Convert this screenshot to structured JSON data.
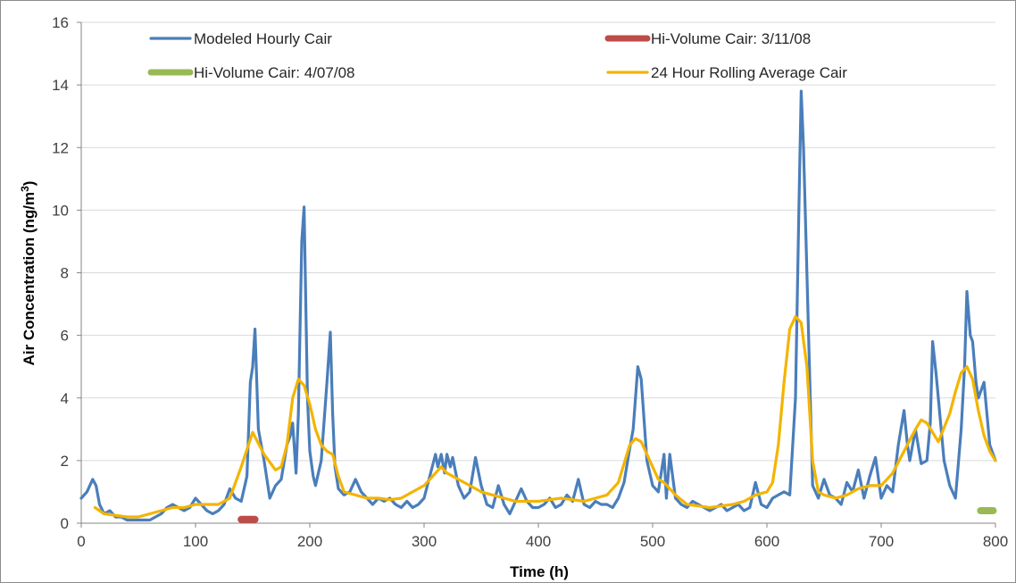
{
  "chart_data": {
    "type": "line",
    "xlabel": "Time (h)",
    "ylabel": "Air Concentration (ng/m",
    "ylabel_superscript": "3",
    "ylabel_close": ")",
    "xlim": [
      0,
      800
    ],
    "ylim": [
      0,
      16
    ],
    "xticks": [
      0,
      100,
      200,
      300,
      400,
      500,
      600,
      700,
      800
    ],
    "yticks": [
      0,
      2,
      4,
      6,
      8,
      10,
      12,
      14,
      16
    ],
    "grid": "horizontal",
    "legend_placement": "top",
    "series": [
      {
        "name": "Modeled Hourly Cair",
        "style": "line",
        "color": "#4a7ebb",
        "x": [
          0,
          5,
          10,
          13,
          16,
          20,
          25,
          30,
          35,
          40,
          50,
          60,
          65,
          70,
          75,
          80,
          85,
          90,
          95,
          100,
          105,
          110,
          115,
          120,
          125,
          130,
          135,
          140,
          145,
          148,
          150,
          152,
          155,
          160,
          165,
          170,
          175,
          180,
          183,
          185,
          188,
          190,
          193,
          195,
          198,
          200,
          203,
          205,
          210,
          215,
          218,
          220,
          222,
          225,
          230,
          235,
          240,
          245,
          250,
          255,
          260,
          265,
          270,
          275,
          280,
          285,
          290,
          295,
          300,
          305,
          310,
          312,
          315,
          318,
          320,
          323,
          325,
          330,
          335,
          340,
          345,
          350,
          355,
          360,
          365,
          370,
          375,
          380,
          385,
          390,
          395,
          400,
          405,
          410,
          415,
          420,
          425,
          430,
          435,
          440,
          445,
          450,
          455,
          460,
          465,
          470,
          475,
          480,
          483,
          485,
          487,
          490,
          495,
          500,
          505,
          510,
          512,
          515,
          520,
          525,
          530,
          535,
          540,
          545,
          550,
          555,
          560,
          565,
          570,
          575,
          580,
          585,
          590,
          595,
          600,
          605,
          610,
          615,
          620,
          625,
          628,
          630,
          632,
          635,
          640,
          645,
          650,
          655,
          660,
          665,
          670,
          675,
          680,
          685,
          690,
          695,
          700,
          705,
          710,
          715,
          720,
          723,
          725,
          730,
          735,
          740,
          743,
          745,
          748,
          750,
          755,
          760,
          765,
          770,
          773,
          775,
          778,
          780,
          783,
          785,
          790,
          795,
          800
        ],
        "y": [
          0.8,
          1.0,
          1.4,
          1.2,
          0.6,
          0.3,
          0.4,
          0.2,
          0.2,
          0.1,
          0.1,
          0.1,
          0.2,
          0.3,
          0.5,
          0.6,
          0.5,
          0.4,
          0.5,
          0.8,
          0.6,
          0.4,
          0.3,
          0.4,
          0.6,
          1.1,
          0.8,
          0.7,
          1.5,
          4.5,
          5.0,
          6.2,
          3.0,
          2.0,
          0.8,
          1.2,
          1.4,
          2.5,
          2.8,
          3.2,
          1.6,
          3.5,
          9.0,
          10.1,
          4.0,
          2.3,
          1.5,
          1.2,
          2.0,
          4.5,
          6.1,
          3.5,
          1.8,
          1.1,
          0.9,
          1.0,
          1.4,
          1.0,
          0.8,
          0.6,
          0.8,
          0.7,
          0.8,
          0.6,
          0.5,
          0.7,
          0.5,
          0.6,
          0.8,
          1.5,
          2.2,
          1.8,
          2.2,
          1.6,
          2.2,
          1.8,
          2.1,
          1.2,
          0.8,
          1.0,
          2.1,
          1.2,
          0.6,
          0.5,
          1.2,
          0.6,
          0.3,
          0.7,
          1.1,
          0.7,
          0.5,
          0.5,
          0.6,
          0.8,
          0.5,
          0.6,
          0.9,
          0.7,
          1.4,
          0.6,
          0.5,
          0.7,
          0.6,
          0.6,
          0.5,
          0.8,
          1.3,
          2.4,
          3.0,
          4.0,
          5.0,
          4.6,
          2.0,
          1.2,
          1.0,
          2.2,
          0.8,
          2.2,
          0.8,
          0.6,
          0.5,
          0.7,
          0.6,
          0.5,
          0.4,
          0.5,
          0.6,
          0.4,
          0.5,
          0.6,
          0.4,
          0.5,
          1.3,
          0.6,
          0.5,
          0.8,
          0.9,
          1.0,
          0.9,
          4.0,
          10.0,
          13.8,
          12.0,
          8.0,
          1.2,
          0.8,
          1.4,
          0.9,
          0.8,
          0.6,
          1.3,
          1.0,
          1.7,
          0.8,
          1.5,
          2.1,
          0.8,
          1.2,
          1.0,
          2.5,
          3.6,
          2.5,
          2.0,
          3.0,
          1.9,
          2.0,
          3.2,
          5.8,
          4.8,
          4.0,
          2.0,
          1.2,
          0.8,
          3.0,
          5.0,
          7.4,
          6.0,
          5.8,
          4.5,
          4.0,
          4.5,
          2.5,
          2.0
        ]
      },
      {
        "name": "Hi-Volume Cair: 3/11/08",
        "style": "segment",
        "color": "#be4b48",
        "x": [
          140,
          152
        ],
        "y": [
          0.12,
          0.12
        ]
      },
      {
        "name": "Hi-Volume Cair: 4/07/08",
        "style": "segment",
        "color": "#98b954",
        "x": [
          787,
          798
        ],
        "y": [
          0.4,
          0.4
        ]
      },
      {
        "name": "24 Hour Rolling Average Cair",
        "style": "line",
        "color": "#f4b400",
        "x": [
          12,
          20,
          30,
          40,
          50,
          60,
          70,
          80,
          90,
          100,
          110,
          120,
          130,
          140,
          150,
          160,
          170,
          175,
          180,
          185,
          190,
          195,
          200,
          205,
          210,
          215,
          220,
          225,
          230,
          240,
          250,
          260,
          270,
          280,
          290,
          300,
          310,
          315,
          320,
          330,
          340,
          350,
          360,
          370,
          380,
          390,
          400,
          410,
          420,
          430,
          440,
          450,
          460,
          470,
          480,
          485,
          490,
          500,
          505,
          510,
          520,
          530,
          540,
          550,
          560,
          570,
          580,
          590,
          600,
          605,
          610,
          615,
          620,
          625,
          630,
          635,
          640,
          645,
          650,
          660,
          670,
          680,
          690,
          700,
          710,
          720,
          730,
          735,
          740,
          750,
          760,
          765,
          770,
          775,
          780,
          785,
          790,
          795,
          800
        ],
        "y": [
          0.5,
          0.3,
          0.25,
          0.2,
          0.2,
          0.3,
          0.4,
          0.5,
          0.5,
          0.6,
          0.6,
          0.6,
          0.8,
          1.8,
          2.9,
          2.2,
          1.7,
          1.8,
          2.5,
          4.0,
          4.6,
          4.4,
          3.8,
          3.0,
          2.5,
          2.3,
          2.2,
          1.5,
          1.0,
          0.9,
          0.8,
          0.8,
          0.75,
          0.8,
          1.0,
          1.2,
          1.6,
          1.8,
          1.6,
          1.4,
          1.2,
          1.0,
          0.9,
          0.8,
          0.7,
          0.7,
          0.7,
          0.75,
          0.8,
          0.75,
          0.7,
          0.8,
          0.9,
          1.3,
          2.5,
          2.7,
          2.6,
          1.8,
          1.4,
          1.3,
          0.9,
          0.6,
          0.55,
          0.5,
          0.55,
          0.6,
          0.7,
          0.9,
          1.0,
          1.3,
          2.5,
          4.5,
          6.2,
          6.6,
          6.4,
          5.0,
          2.0,
          1.0,
          0.9,
          0.8,
          0.9,
          1.1,
          1.2,
          1.2,
          1.6,
          2.3,
          3.0,
          3.3,
          3.2,
          2.6,
          3.5,
          4.2,
          4.8,
          5.0,
          4.6,
          3.6,
          2.8,
          2.3,
          2.0
        ]
      }
    ]
  }
}
